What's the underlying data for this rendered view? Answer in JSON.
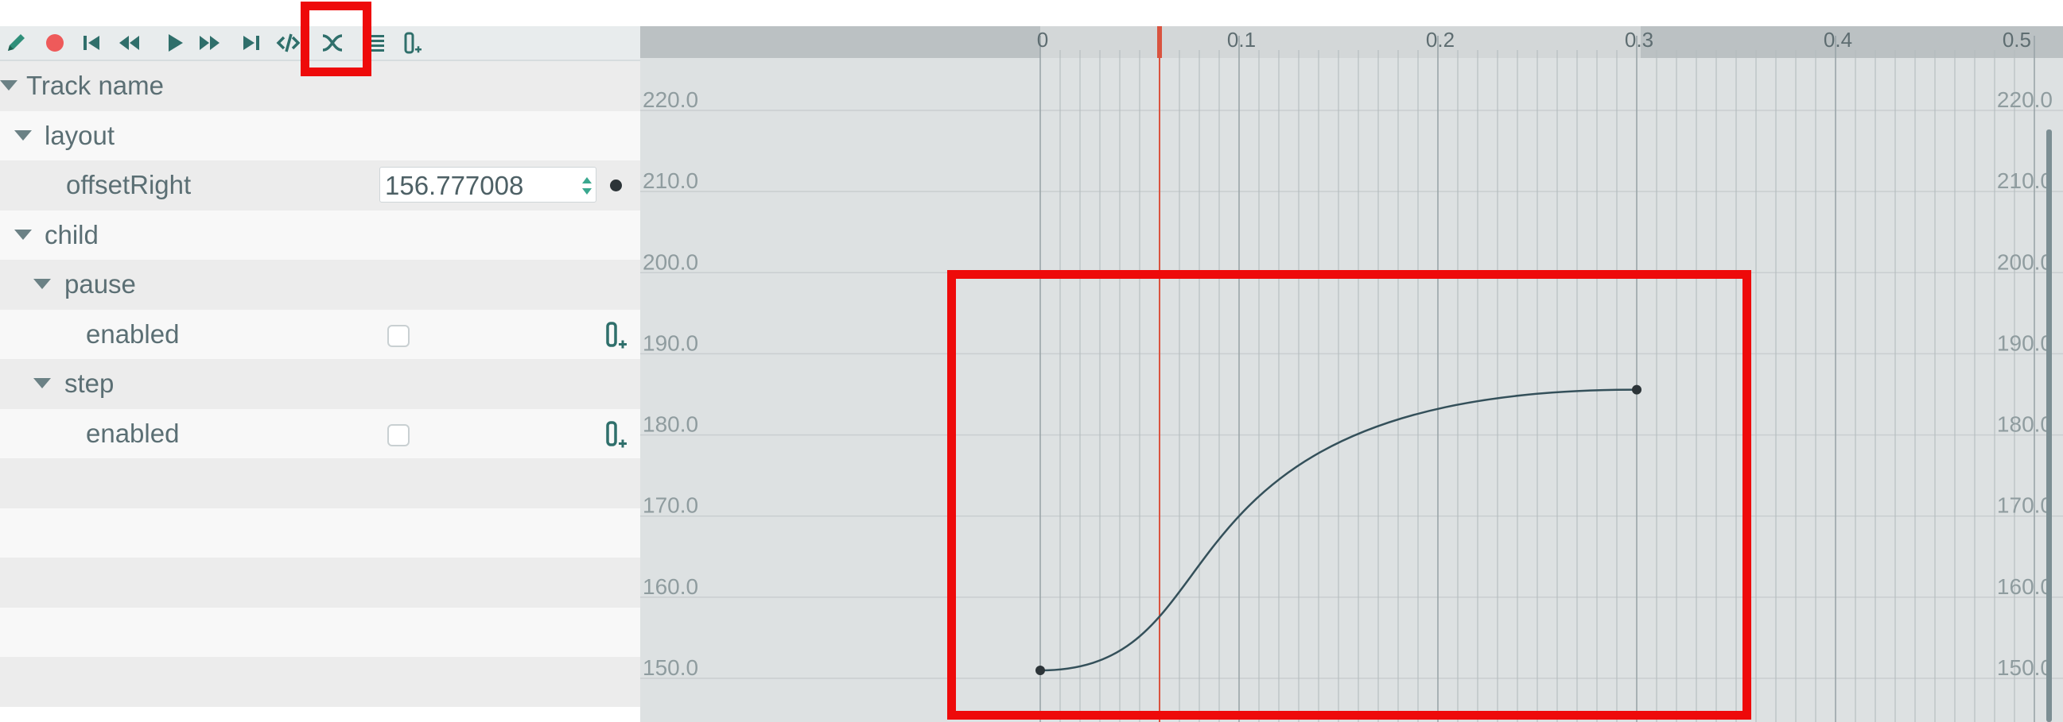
{
  "toolbar": {
    "buttons": [
      {
        "name": "edit-pencil-icon",
        "color": "#2f8f7a"
      },
      {
        "name": "record-icon",
        "color": "#ee5a5a"
      },
      {
        "name": "go-to-start-icon",
        "color": "#2f6f6b"
      },
      {
        "name": "rewind-icon",
        "color": "#2f6f6b"
      },
      {
        "name": "play-icon",
        "color": "#2f6f6b"
      },
      {
        "name": "fast-forward-icon",
        "color": "#2f6f6b"
      },
      {
        "name": "go-to-end-icon",
        "color": "#2f6f6b"
      },
      {
        "name": "code-icon",
        "color": "#2f6f6b"
      },
      {
        "name": "curve-editor-icon",
        "color": "#2f6f6b",
        "active": true
      },
      {
        "name": "list-icon",
        "color": "#2f6f6b"
      },
      {
        "name": "add-key-icon",
        "color": "#2f6f6b"
      }
    ]
  },
  "tracks": {
    "header": "Track name",
    "layout": "layout",
    "offset_right_label": "offsetRight",
    "offset_right_value": "156.777008",
    "child": "child",
    "pause": "pause",
    "pause_enabled_label": "enabled",
    "pause_enabled_checked": false,
    "step": "step",
    "step_enabled_label": "enabled",
    "step_enabled_checked": false
  },
  "timeline": {
    "time_labels": [
      "0",
      "0.1",
      "0.2",
      "0.3",
      "0.4",
      "0.5"
    ],
    "time_values": [
      0,
      0.1,
      0.2,
      0.3,
      0.4,
      0.5
    ],
    "playhead_time": 0.06,
    "value_labels": [
      "220.0",
      "210.0",
      "200.0",
      "190.0",
      "180.0",
      "170.0",
      "160.0",
      "150.0"
    ],
    "value_values": [
      220,
      210,
      200,
      190,
      180,
      170,
      160,
      150
    ],
    "playhead_color": "#d9533f",
    "curve_color": "#34505a"
  },
  "curve": {
    "keyframes": [
      {
        "t": 0.0,
        "v": 150.0
      },
      {
        "t": 0.3,
        "v": 184.6
      }
    ]
  },
  "highlight_color": "#ee0a0a"
}
